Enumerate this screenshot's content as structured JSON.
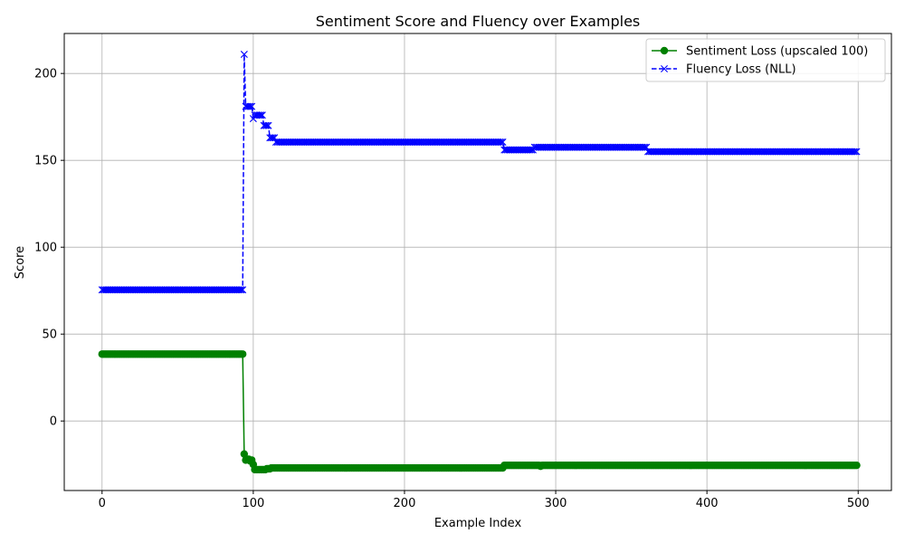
{
  "chart_data": {
    "type": "line",
    "title": "Sentiment Score and Fluency over Examples",
    "xlabel": "Example Index",
    "ylabel": "Score",
    "xlim": [
      -25,
      522
    ],
    "ylim": [
      -40,
      223
    ],
    "xticks": [
      0,
      100,
      200,
      300,
      400,
      500
    ],
    "yticks": [
      0,
      50,
      100,
      150,
      200
    ],
    "grid": true,
    "legend_position": "top-right",
    "series": [
      {
        "name": "Sentiment Loss (upscaled 100)",
        "color": "#008000",
        "line_style": "solid",
        "marker": "circle",
        "segments": [
          {
            "x_start": 0,
            "x_end": 93,
            "value": 38.5
          },
          {
            "x_start": 94,
            "x_end": 94,
            "value": -19
          },
          {
            "x_start": 95,
            "x_end": 95,
            "value": -22.5
          },
          {
            "x_start": 96,
            "x_end": 97,
            "value": -22
          },
          {
            "x_start": 98,
            "x_end": 98,
            "value": -23
          },
          {
            "x_start": 99,
            "x_end": 99,
            "value": -22.5
          },
          {
            "x_start": 100,
            "x_end": 100,
            "value": -25
          },
          {
            "x_start": 101,
            "x_end": 108,
            "value": -28
          },
          {
            "x_start": 109,
            "x_end": 111,
            "value": -27.5
          },
          {
            "x_start": 112,
            "x_end": 265,
            "value": -27
          },
          {
            "x_start": 266,
            "x_end": 289,
            "value": -25.5
          },
          {
            "x_start": 290,
            "x_end": 290,
            "value": -26
          },
          {
            "x_start": 291,
            "x_end": 499,
            "value": -25.5
          }
        ]
      },
      {
        "name": "Fluency Loss (NLL)",
        "color": "#0000ff",
        "line_style": "dashed",
        "marker": "x",
        "segments": [
          {
            "x_start": 0,
            "x_end": 93,
            "value": 75.5
          },
          {
            "x_start": 94,
            "x_end": 94,
            "value": 211
          },
          {
            "x_start": 95,
            "x_end": 99,
            "value": 181
          },
          {
            "x_start": 100,
            "x_end": 100,
            "value": 174
          },
          {
            "x_start": 101,
            "x_end": 106,
            "value": 176
          },
          {
            "x_start": 107,
            "x_end": 110,
            "value": 170
          },
          {
            "x_start": 111,
            "x_end": 114,
            "value": 163
          },
          {
            "x_start": 115,
            "x_end": 265,
            "value": 160.5
          },
          {
            "x_start": 266,
            "x_end": 285,
            "value": 156
          },
          {
            "x_start": 286,
            "x_end": 360,
            "value": 157.5
          },
          {
            "x_start": 361,
            "x_end": 499,
            "value": 155
          }
        ]
      }
    ]
  }
}
